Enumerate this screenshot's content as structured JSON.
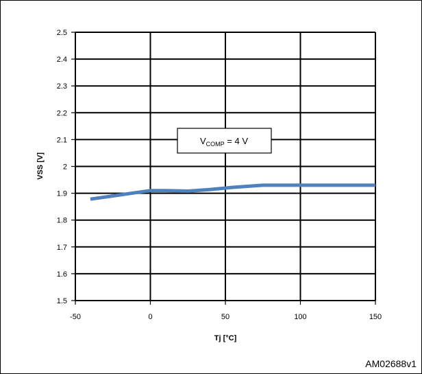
{
  "chart_data": {
    "type": "line",
    "title": "",
    "xlabel": "Tj [°C]",
    "ylabel": "VSS [V]",
    "xlim": [
      -50,
      150
    ],
    "ylim": [
      1.5,
      2.5
    ],
    "x_ticks": [
      -50,
      0,
      50,
      100,
      150
    ],
    "y_ticks": [
      1.5,
      1.6,
      1.7,
      1.8,
      1.9,
      2.0,
      2.1,
      2.2,
      2.3,
      2.4,
      2.5
    ],
    "x_tick_labels": [
      "-50",
      "0",
      "50",
      "100",
      "150"
    ],
    "y_tick_labels": [
      "1.5",
      "1.6",
      "1.7",
      "1.8",
      "1.9",
      "2",
      "2.1",
      "2.2",
      "2.3",
      "2.4",
      "2.5"
    ],
    "grid": true,
    "series": [
      {
        "color": "#4f81bd",
        "x": [
          -40,
          -25,
          -10,
          0,
          10,
          25,
          40,
          55,
          75,
          100,
          125,
          150
        ],
        "y": [
          1.878,
          1.89,
          1.902,
          1.91,
          1.91,
          1.908,
          1.914,
          1.922,
          1.93,
          1.93,
          1.93,
          1.93
        ]
      }
    ],
    "annotation": {
      "text_main": "V",
      "text_sub": "COMP",
      "text_rest": " = 4 V"
    }
  },
  "figure_code": "AM02688v1"
}
